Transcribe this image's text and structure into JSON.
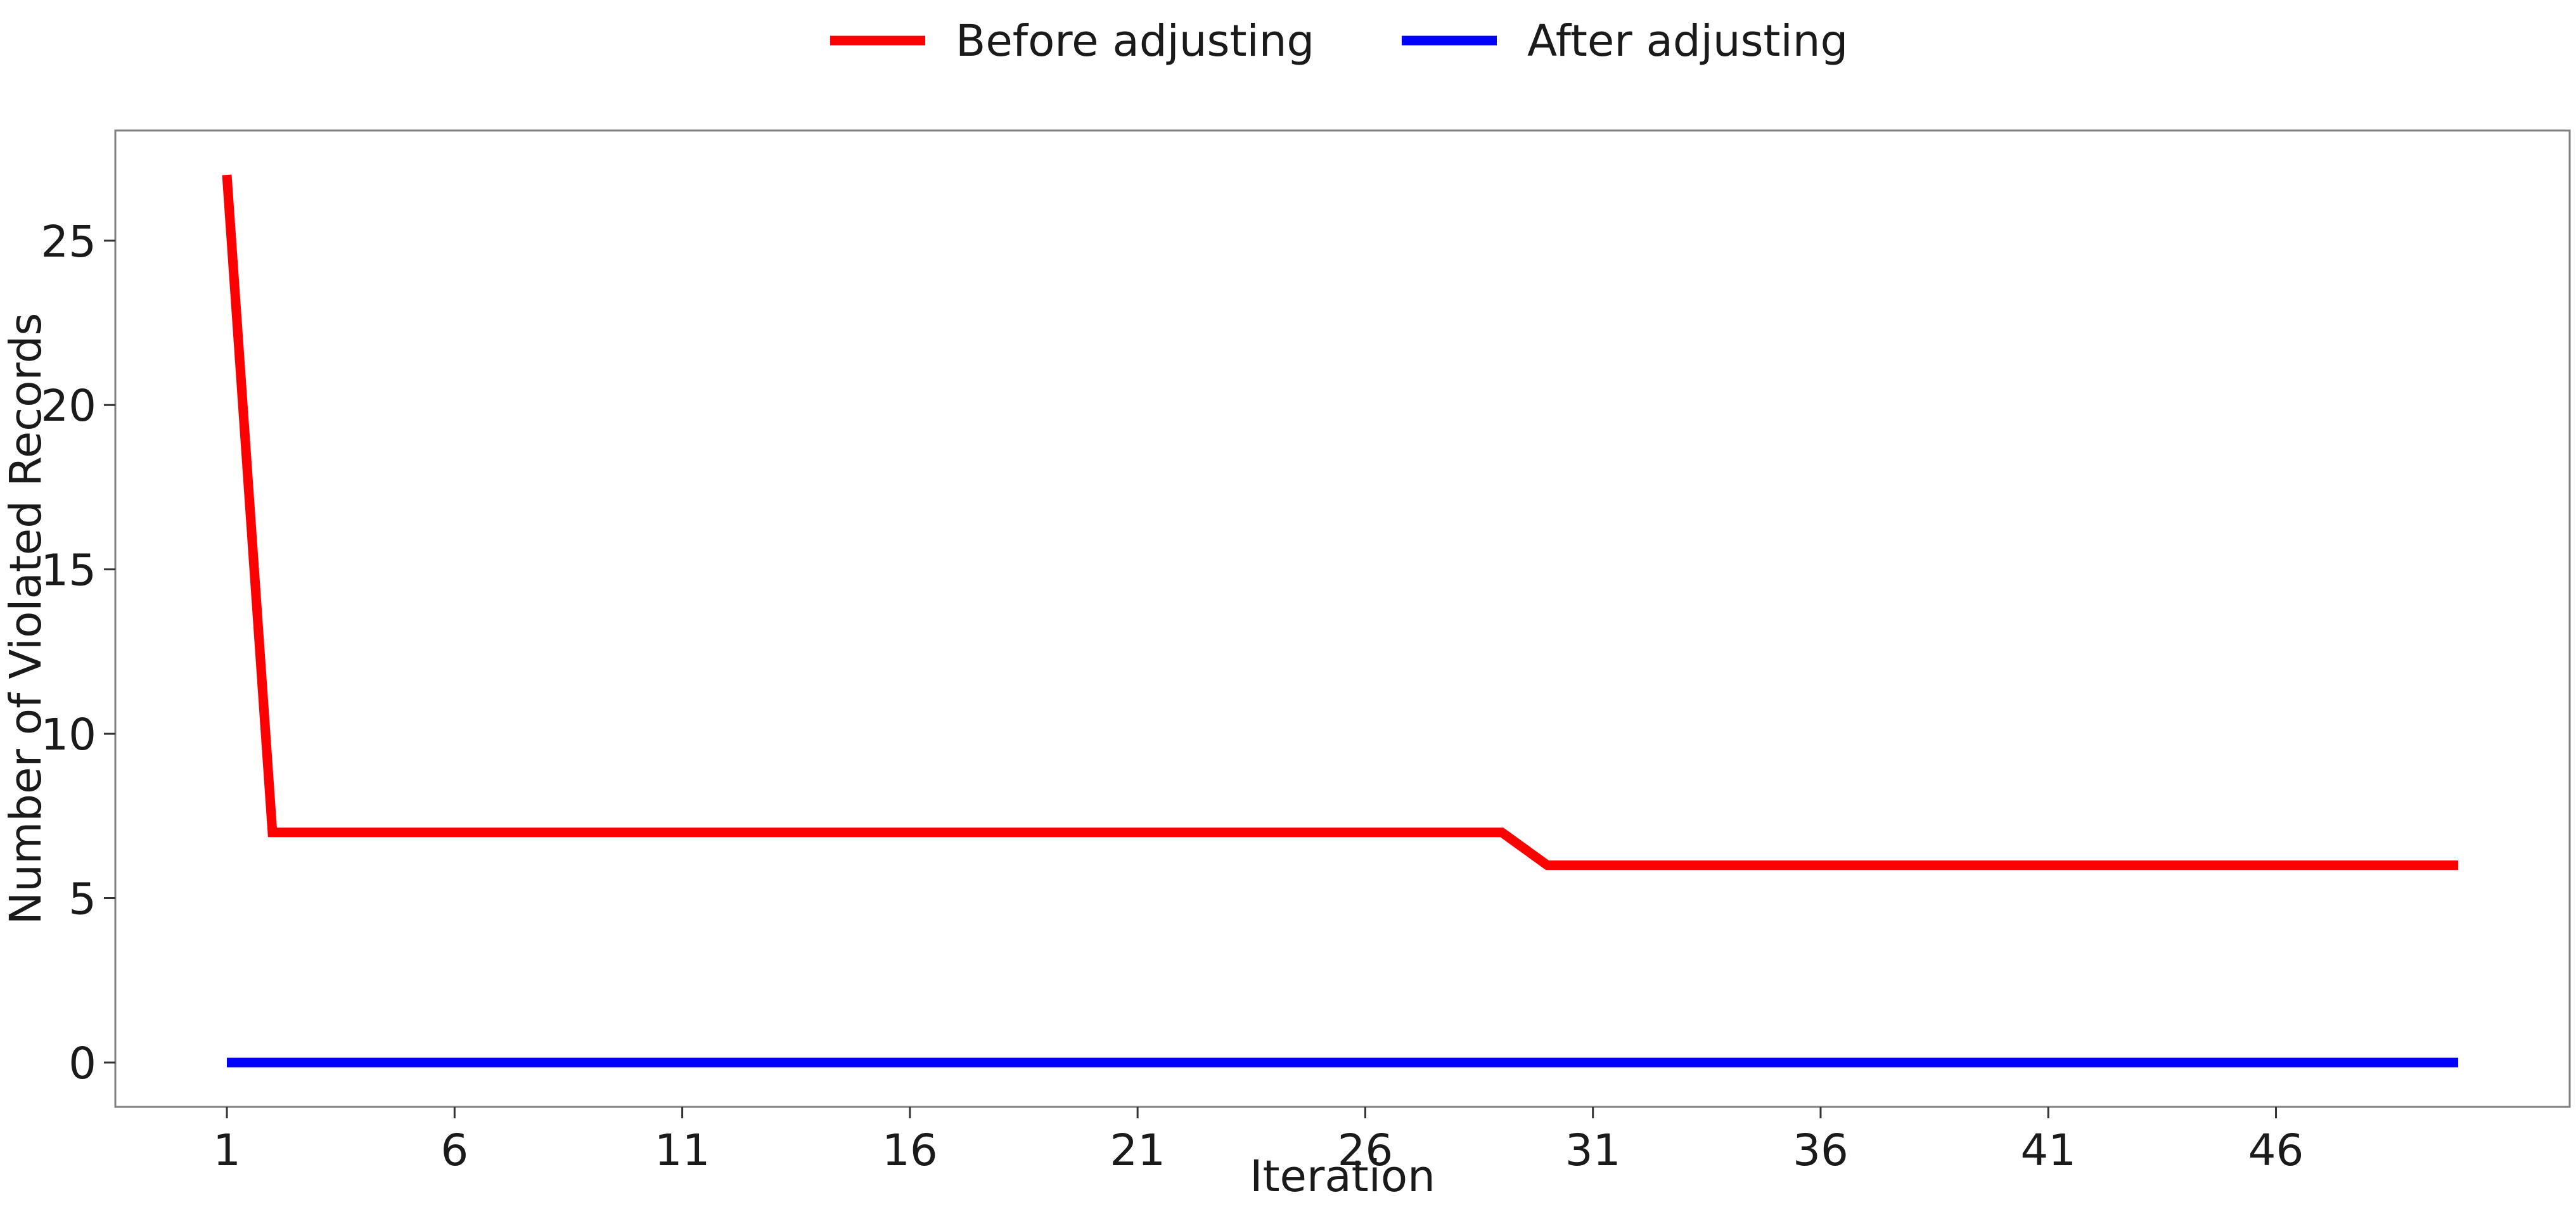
{
  "chart_data": {
    "type": "line",
    "title": "",
    "xlabel": "Iteration",
    "ylabel": "Number of Violated Records",
    "x": [
      1,
      2,
      3,
      4,
      5,
      6,
      7,
      8,
      9,
      10,
      11,
      12,
      13,
      14,
      15,
      16,
      17,
      18,
      19,
      20,
      21,
      22,
      23,
      24,
      25,
      26,
      27,
      28,
      29,
      30,
      31,
      32,
      33,
      34,
      35,
      36,
      37,
      38,
      39,
      40,
      41,
      42,
      43,
      44,
      45,
      46,
      47,
      48,
      49,
      50
    ],
    "xticks": [
      1,
      6,
      11,
      16,
      21,
      26,
      31,
      36,
      41,
      46
    ],
    "yticks": [
      0,
      5,
      10,
      15,
      20,
      25
    ],
    "xlim": [
      -1.45,
      52.45
    ],
    "ylim": [
      -1.35,
      28.35
    ],
    "grid": false,
    "legend_position": "top-center",
    "series": [
      {
        "name": "Before adjusting",
        "color": "#ff0000",
        "values": [
          27,
          7,
          7,
          7,
          7,
          7,
          7,
          7,
          7,
          7,
          7,
          7,
          7,
          7,
          7,
          7,
          7,
          7,
          7,
          7,
          7,
          7,
          7,
          7,
          7,
          7,
          7,
          7,
          7,
          6,
          6,
          6,
          6,
          6,
          6,
          6,
          6,
          6,
          6,
          6,
          6,
          6,
          6,
          6,
          6,
          6,
          6,
          6,
          6,
          6
        ]
      },
      {
        "name": "After adjusting",
        "color": "#0000ff",
        "values": [
          0,
          0,
          0,
          0,
          0,
          0,
          0,
          0,
          0,
          0,
          0,
          0,
          0,
          0,
          0,
          0,
          0,
          0,
          0,
          0,
          0,
          0,
          0,
          0,
          0,
          0,
          0,
          0,
          0,
          0,
          0,
          0,
          0,
          0,
          0,
          0,
          0,
          0,
          0,
          0,
          0,
          0,
          0,
          0,
          0,
          0,
          0,
          0,
          0,
          0
        ]
      }
    ]
  }
}
